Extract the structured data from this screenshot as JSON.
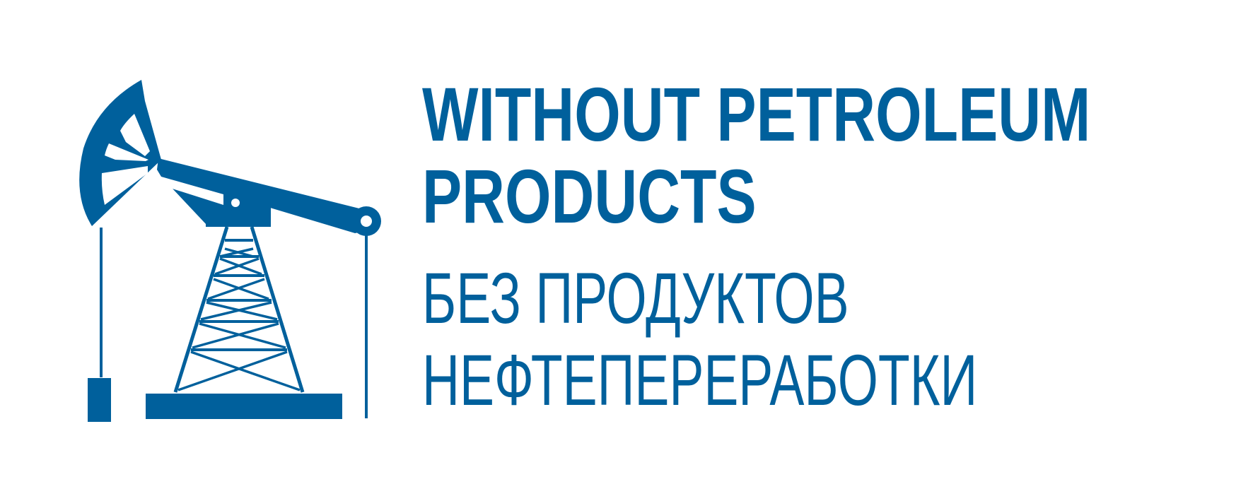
{
  "brand_color": "#00609c",
  "logo": {
    "icon": "oil-pump-jack-icon",
    "title_en": {
      "line1": "WITHOUT PETROLEUM",
      "line2": "PRODUCTS"
    },
    "title_ru": {
      "line1": "БЕЗ ПРОДУКТОВ",
      "line2": "НЕФТЕПЕРЕРАБОТКИ"
    }
  }
}
